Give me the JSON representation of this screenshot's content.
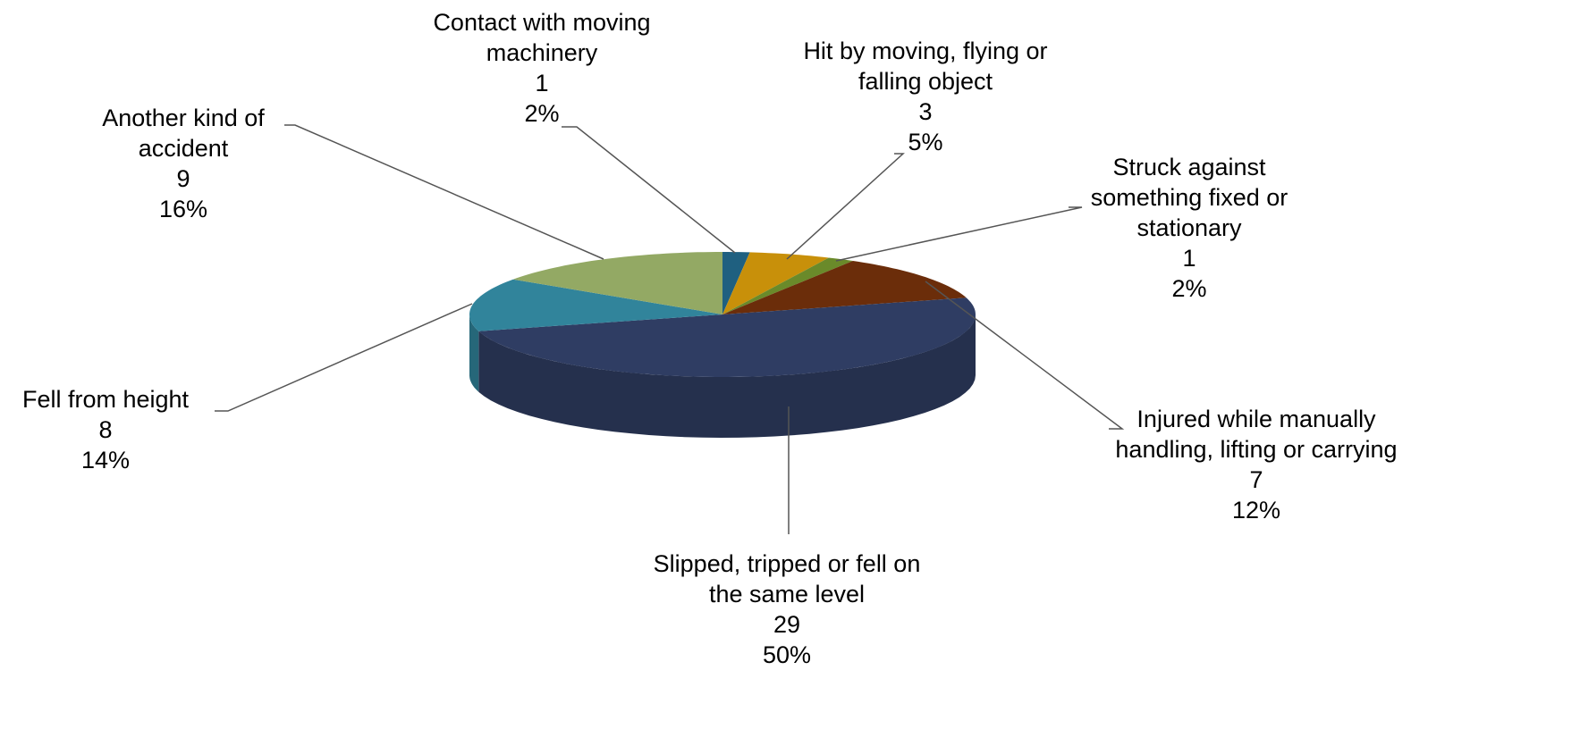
{
  "chart_data": {
    "type": "pie3d",
    "categories": [
      "Contact with moving machinery",
      "Hit by moving, flying or falling object",
      "Struck against something fixed or stationary",
      "Injured while manually handling, lifting or carrying",
      "Slipped, tripped or fell on the same level",
      "Fell from height",
      "Another kind of accident"
    ],
    "values": [
      1,
      3,
      1,
      7,
      29,
      8,
      9
    ],
    "percent_labels": [
      "2%",
      "5%",
      "2%",
      "12%",
      "50%",
      "14%",
      "16%"
    ],
    "colors": [
      "#1f6080",
      "#c8900a",
      "#6a8a2a",
      "#6b2d0a",
      "#2f3d63",
      "#31849b",
      "#93a964"
    ]
  }
}
